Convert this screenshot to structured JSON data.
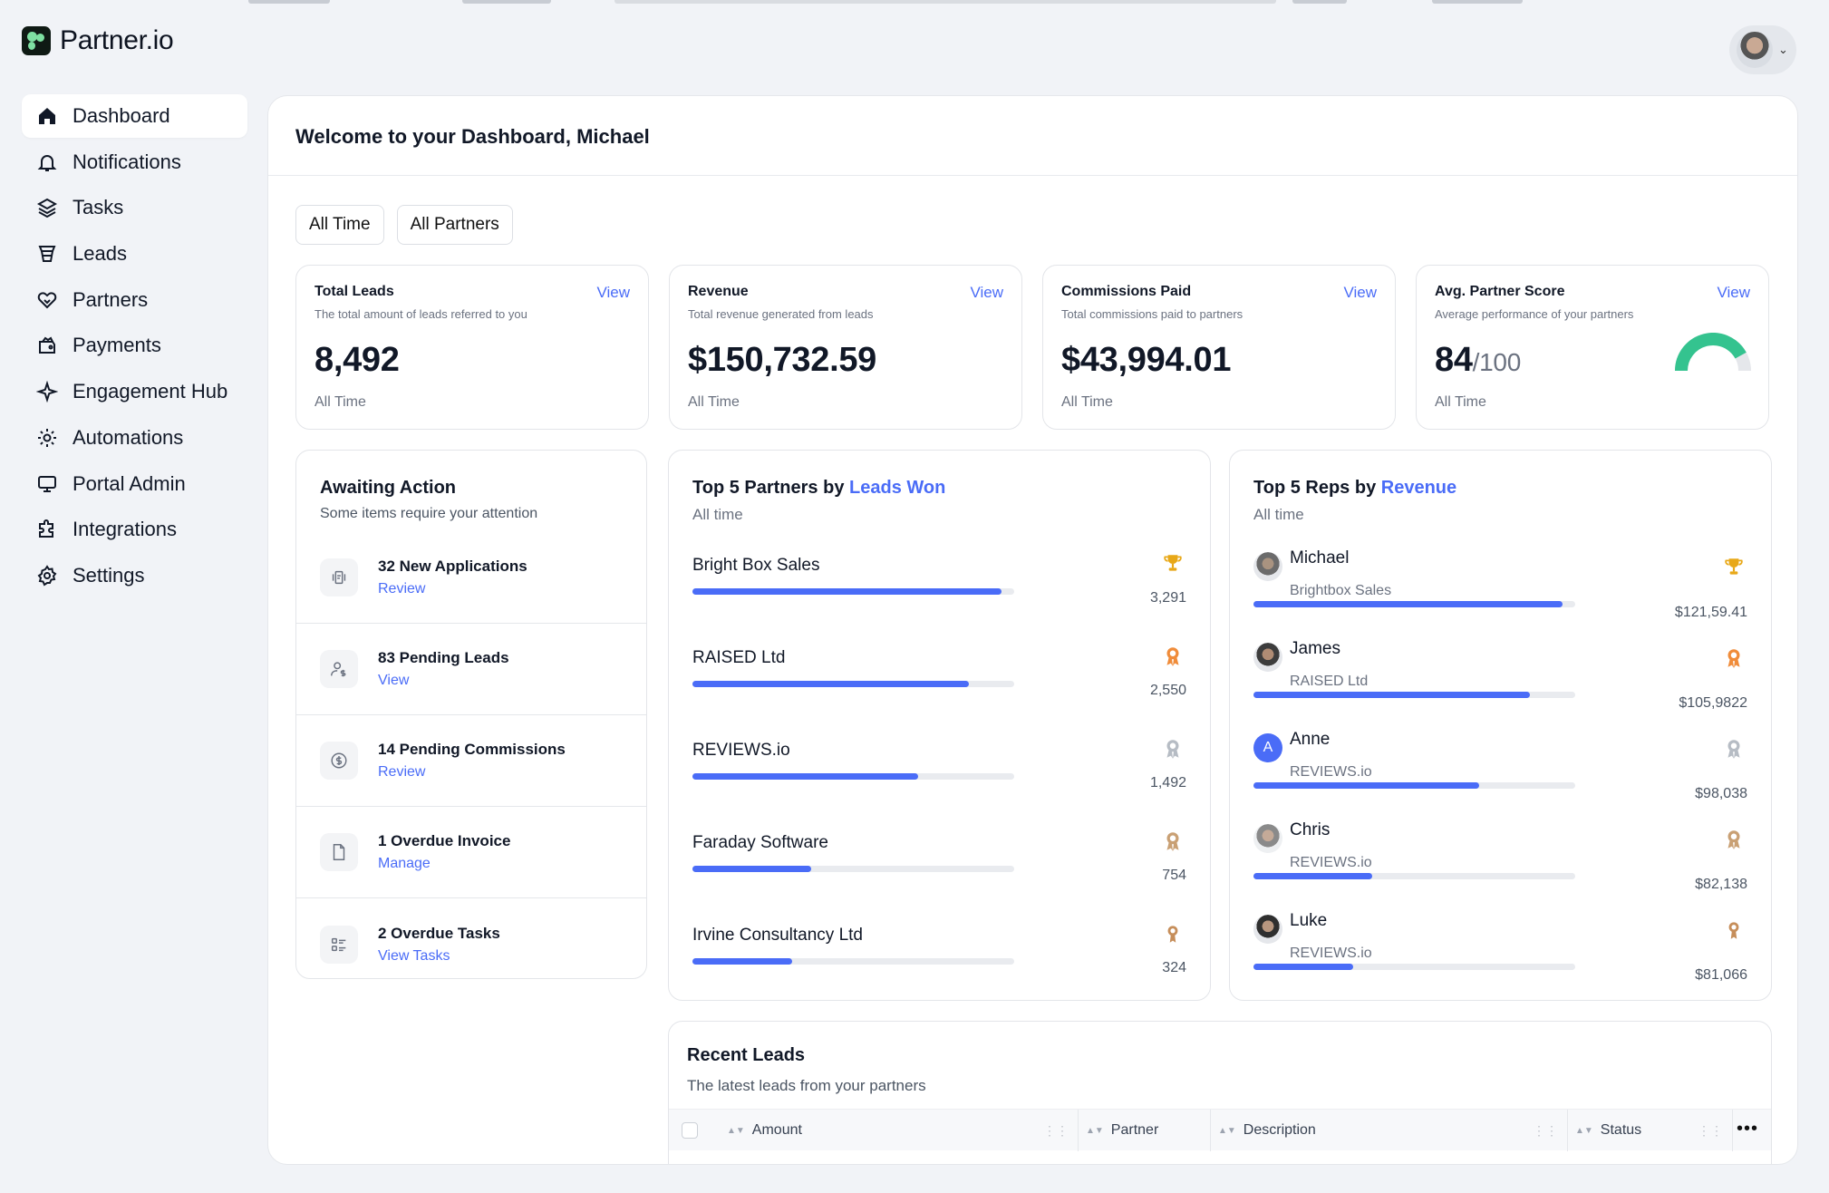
{
  "app": {
    "name": "Partner.io"
  },
  "sidebar": {
    "items": [
      {
        "label": "Dashboard",
        "icon": "home-icon",
        "active": true
      },
      {
        "label": "Notifications",
        "icon": "bell-icon"
      },
      {
        "label": "Tasks",
        "icon": "layers-icon"
      },
      {
        "label": "Leads",
        "icon": "funnel-icon"
      },
      {
        "label": "Partners",
        "icon": "handshake-icon"
      },
      {
        "label": "Payments",
        "icon": "wallet-icon"
      },
      {
        "label": "Engagement Hub",
        "icon": "sparkle-icon"
      },
      {
        "label": "Automations",
        "icon": "cog-automation-icon"
      },
      {
        "label": "Portal Admin",
        "icon": "monitor-icon"
      },
      {
        "label": "Integrations",
        "icon": "puzzle-icon"
      },
      {
        "label": "Settings",
        "icon": "gear-icon"
      }
    ]
  },
  "header": {
    "welcome": "Welcome to your Dashboard, Michael"
  },
  "filters": {
    "time": "All Time",
    "partners": "All Partners"
  },
  "stats": [
    {
      "title": "Total Leads",
      "subtitle": "The total amount of leads referred to you",
      "value": "8,492",
      "suffix": "",
      "footer": "All Time",
      "link": "View"
    },
    {
      "title": "Revenue",
      "subtitle": "Total revenue generated from leads",
      "value": "$150,732.59",
      "suffix": "",
      "footer": "All Time",
      "link": "View"
    },
    {
      "title": "Commissions Paid",
      "subtitle": "Total commissions paid to partners",
      "value": "$43,994.01",
      "suffix": "",
      "footer": "All Time",
      "link": "View"
    },
    {
      "title": "Avg. Partner Score",
      "subtitle": "Average performance of your partners",
      "value": "84",
      "suffix": "/100",
      "footer": "All Time",
      "link": "View",
      "gauge_fraction": 0.84,
      "gauge_color": "#34c38f"
    }
  ],
  "awaiting": {
    "title": "Awaiting Action",
    "subtitle": "Some items require your attention",
    "items": [
      {
        "title": "32 New Applications",
        "action": "Review",
        "icon": "application-icon"
      },
      {
        "title": "83 Pending Leads",
        "action": "View",
        "icon": "user-dollar-icon"
      },
      {
        "title": "14 Pending Commissions",
        "action": "Review",
        "icon": "dollar-circle-icon"
      },
      {
        "title": "1 Overdue Invoice",
        "action": "Manage",
        "icon": "document-icon"
      },
      {
        "title": "2 Overdue Tasks",
        "action": "View Tasks",
        "icon": "checklist-icon"
      }
    ]
  },
  "top_partners": {
    "title_prefix": "Top 5 Partners by ",
    "title_highlight": "Leads Won",
    "subtitle": "All time",
    "rows": [
      {
        "name": "Bright Box Sales",
        "value": "3,291",
        "progress": 0.96,
        "medal": "trophy-gold-icon"
      },
      {
        "name": "RAISED Ltd",
        "value": "2,550",
        "progress": 0.86,
        "medal": "medal-orange-icon"
      },
      {
        "name": "REVIEWS.io",
        "value": "1,492",
        "progress": 0.7,
        "medal": "medal-silver-icon"
      },
      {
        "name": "Faraday Software",
        "value": "754",
        "progress": 0.37,
        "medal": "medal-bronze-icon"
      },
      {
        "name": "Irvine Consultancy Ltd",
        "value": "324",
        "progress": 0.31,
        "medal": "medal-copper-icon"
      }
    ]
  },
  "top_reps": {
    "title_prefix": "Top 5 Reps by ",
    "title_highlight": "Revenue",
    "subtitle": "All time",
    "rows": [
      {
        "name": "Michael",
        "company": "Brightbox Sales",
        "value": "$121,59.41",
        "progress": 0.96,
        "medal": "trophy-gold-icon",
        "avatar": "photo"
      },
      {
        "name": "James",
        "company": "RAISED Ltd",
        "value": "$105,9822",
        "progress": 0.86,
        "medal": "medal-orange-icon",
        "avatar": "photo"
      },
      {
        "name": "Anne",
        "company": "REVIEWS.io",
        "value": "$98,038",
        "progress": 0.7,
        "medal": "medal-silver-icon",
        "avatar": "A"
      },
      {
        "name": "Chris",
        "company": "REVIEWS.io",
        "value": "$82,138",
        "progress": 0.37,
        "medal": "medal-bronze-icon",
        "avatar": "photo"
      },
      {
        "name": "Luke",
        "company": "REVIEWS.io",
        "value": "$81,066",
        "progress": 0.31,
        "medal": "medal-copper-icon",
        "avatar": "photo"
      }
    ]
  },
  "recent_leads": {
    "title": "Recent Leads",
    "subtitle": "The latest leads from your partners",
    "columns": [
      "Amount",
      "Partner",
      "Description",
      "Status"
    ]
  },
  "colors": {
    "accent": "#4a6cf7",
    "gold": "#e8a817",
    "orange": "#f08c3a",
    "silver": "#b6bcc4",
    "bronze": "#c9a074",
    "copper": "#c68e5a"
  }
}
